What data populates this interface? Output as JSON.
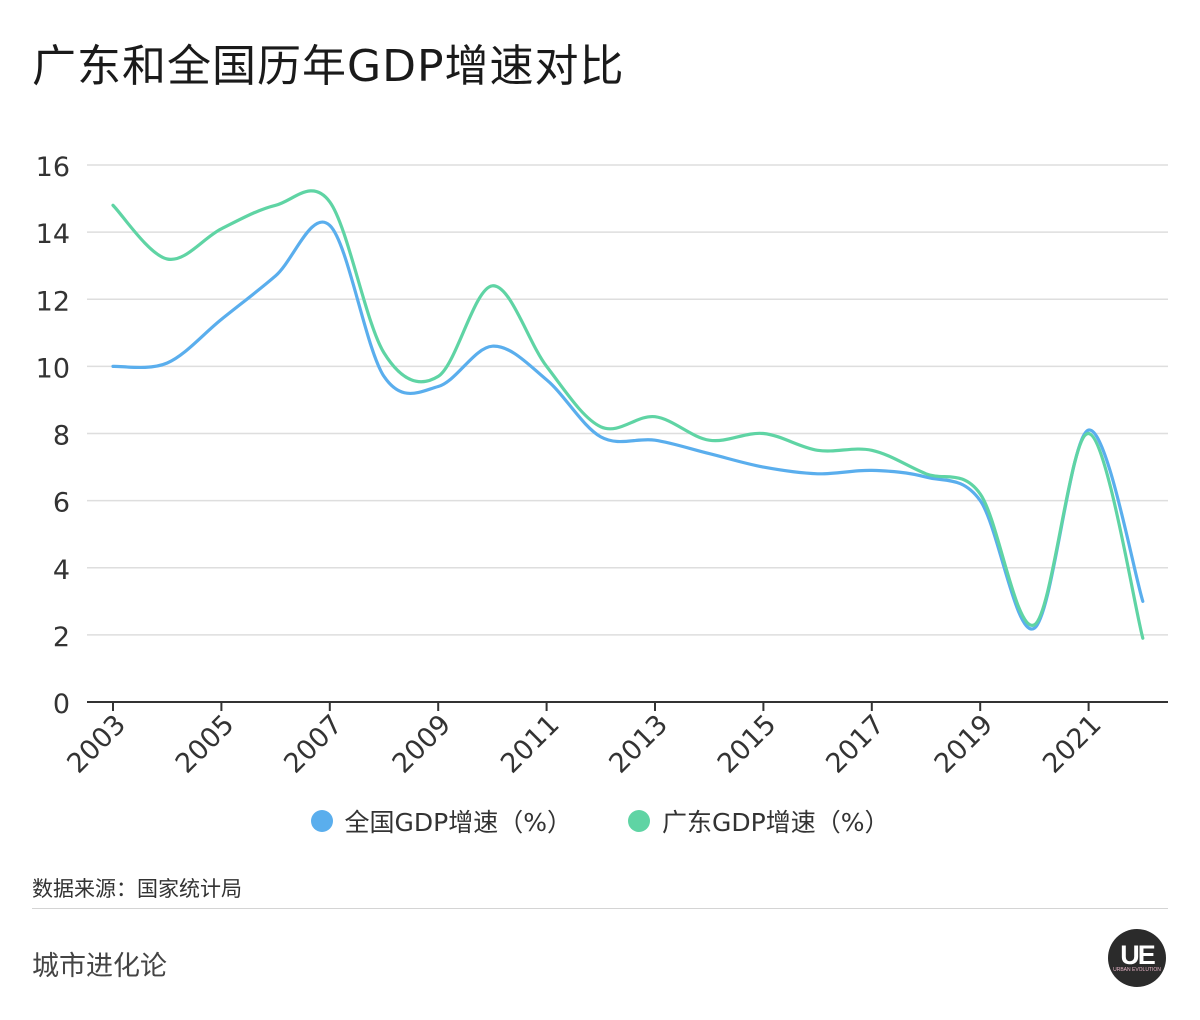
{
  "title": "广东和全国历年GDP增速对比",
  "source": "数据来源：国家统计局",
  "brand": "城市进化论",
  "logo": {
    "letters": "UE",
    "sub": "URBAN EVOLUTION"
  },
  "chart_data": {
    "type": "line",
    "title": "广东和全国历年GDP增速对比",
    "x": [
      2003,
      2004,
      2005,
      2006,
      2007,
      2008,
      2009,
      2010,
      2011,
      2012,
      2013,
      2014,
      2015,
      2016,
      2017,
      2018,
      2019,
      2020,
      2021,
      2022
    ],
    "x_ticks": [
      "2003",
      "2005",
      "2007",
      "2009",
      "2011",
      "2013",
      "2015",
      "2017",
      "2019",
      "2021"
    ],
    "y_ticks": [
      "0",
      "2",
      "4",
      "6",
      "8",
      "10",
      "12",
      "14",
      "16"
    ],
    "ylim": [
      0,
      16
    ],
    "grid": true,
    "legend_position": "bottom",
    "series": [
      {
        "name": "全国GDP增速（%）",
        "color": "#5aaeed",
        "values": [
          10.0,
          10.1,
          11.4,
          12.7,
          14.2,
          9.7,
          9.4,
          10.6,
          9.6,
          7.9,
          7.8,
          7.4,
          7.0,
          6.8,
          6.9,
          6.7,
          6.0,
          2.2,
          8.1,
          3.0
        ]
      },
      {
        "name": "广东GDP增速（%）",
        "color": "#5fd4a4",
        "values": [
          14.8,
          13.2,
          14.1,
          14.8,
          14.9,
          10.4,
          9.7,
          12.4,
          10.0,
          8.2,
          8.5,
          7.8,
          8.0,
          7.5,
          7.5,
          6.8,
          6.2,
          2.3,
          8.0,
          1.9
        ]
      }
    ]
  }
}
